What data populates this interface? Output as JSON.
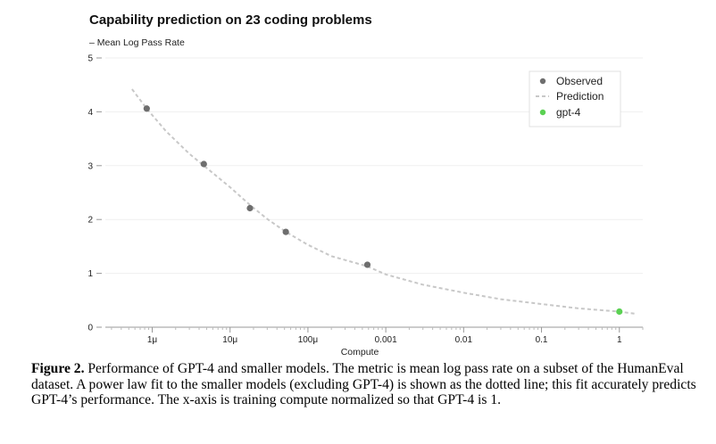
{
  "chart_data": {
    "type": "scatter",
    "title": "Capability prediction on 23 coding problems",
    "ylabel": "– Mean Log Pass Rate",
    "xlabel": "Compute",
    "x_scale": "log",
    "xlim": [
      2.5e-07,
      2
    ],
    "ylim": [
      0,
      5
    ],
    "y_ticks": [
      0,
      1,
      2,
      3,
      4,
      5
    ],
    "y_tick_labels": [
      "0",
      "1",
      "2",
      "3",
      "4",
      "5"
    ],
    "x_ticks": [
      1e-06,
      1e-05,
      0.0001,
      0.001,
      0.01,
      0.1,
      1
    ],
    "x_tick_labels": [
      "1μ",
      "10μ",
      "100μ",
      "0.001",
      "0.01",
      "0.1",
      "1"
    ],
    "grid": "horizontal",
    "legend_position": "top-right",
    "legend": [
      "Observed",
      "Prediction",
      "gpt-4"
    ],
    "colors": {
      "observed": "#6e6e6e",
      "prediction": "#c8c8c8",
      "gpt4": "#5bd153"
    },
    "series": [
      {
        "name": "Observed",
        "kind": "points",
        "x": [
          8.5e-07,
          4.6e-06,
          1.8e-05,
          5.2e-05,
          0.00058
        ],
        "y": [
          4.06,
          3.03,
          2.21,
          1.77,
          1.16
        ]
      },
      {
        "name": "gpt-4",
        "kind": "points",
        "x": [
          1.0
        ],
        "y": [
          0.29
        ]
      },
      {
        "name": "Prediction",
        "kind": "dashed-line",
        "x": [
          5.5e-07,
          8.5e-07,
          1.5e-06,
          3e-06,
          4.6e-06,
          1e-05,
          1.8e-05,
          3e-05,
          5.2e-05,
          0.0001,
          0.0002,
          0.00058,
          0.001,
          0.003,
          0.01,
          0.03,
          0.1,
          0.3,
          1.0,
          1.6
        ],
        "y": [
          4.42,
          4.06,
          3.64,
          3.22,
          3.0,
          2.6,
          2.27,
          2.01,
          1.77,
          1.53,
          1.32,
          1.13,
          0.98,
          0.79,
          0.64,
          0.52,
          0.43,
          0.35,
          0.29,
          0.25
        ]
      }
    ]
  },
  "caption": {
    "label": "Figure 2.",
    "text": " Performance of GPT-4 and smaller models. The metric is mean log pass rate on a subset of the HumanEval dataset. A power law fit to the smaller models (excluding GPT-4) is shown as the dotted line; this fit accurately predicts GPT-4’s performance. The x-axis is training compute normalized so that GPT-4 is 1."
  }
}
